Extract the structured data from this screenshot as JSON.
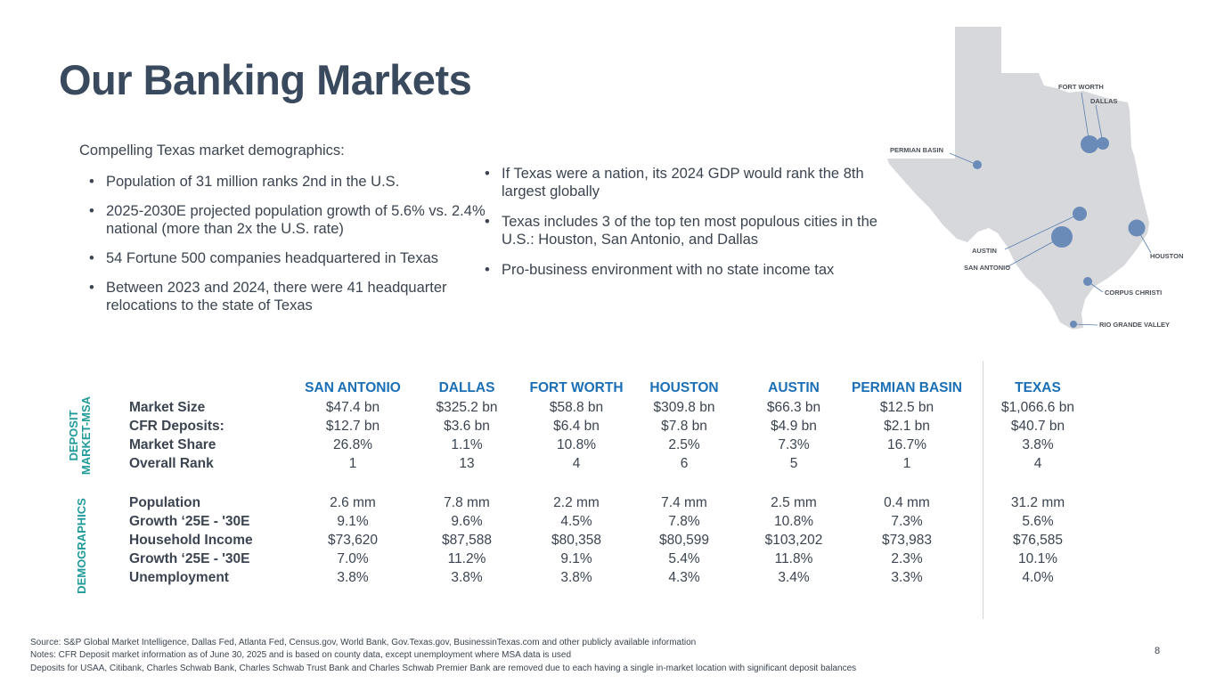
{
  "title": "Our Banking Markets",
  "intro": "Compelling Texas market demographics:",
  "left_bullets": [
    "Population of 31 million ranks 2nd in the U.S.",
    "2025-2030E projected population growth of 5.6% vs. 2.4% national (more than 2x the U.S. rate)",
    "54 Fortune 500 companies headquartered in Texas",
    "Between 2023 and 2024, there were 41 headquarter relocations to the state of Texas"
  ],
  "right_bullets": [
    "If Texas were a nation, its 2024 GDP would rank the 8th largest globally",
    "Texas includes 3 of the top ten most populous cities in the U.S.: Houston, San Antonio, and Dallas",
    "Pro-business environment with no state income tax"
  ],
  "map": {
    "labels": {
      "fort_worth": "FORT WORTH",
      "dallas": "DALLAS",
      "permian_basin": "PERMIAN BASIN",
      "austin": "AUSTIN",
      "san_antonio": "SAN ANTONIO",
      "houston": "HOUSTON",
      "corpus_christi": "CORPUS CHRISTI",
      "rio_grande_valley": "RIO GRANDE VALLEY"
    },
    "state_color": "#d6d8db",
    "marker_color": "#6a8bb7"
  },
  "section_labels": {
    "deposit_line1": "DEPOSIT",
    "deposit_line2": "MARKET-MSA",
    "demographics": "DEMOGRAPHICS"
  },
  "table": {
    "columns": [
      "SAN ANTONIO",
      "DALLAS",
      "FORT WORTH",
      "HOUSTON",
      "AUSTIN",
      "PERMIAN BASIN",
      "TEXAS"
    ],
    "deposit_rows": [
      {
        "label": "Market Size",
        "values": [
          "$47.4 bn",
          "$325.2 bn",
          "$58.8 bn",
          "$309.8 bn",
          "$66.3 bn",
          "$12.5 bn",
          "$1,066.6 bn"
        ]
      },
      {
        "label": "CFR Deposits:",
        "values": [
          "$12.7 bn",
          "$3.6 bn",
          "$6.4 bn",
          "$7.8 bn",
          "$4.9 bn",
          "$2.1 bn",
          "$40.7 bn"
        ]
      },
      {
        "label": "Market Share",
        "values": [
          "26.8%",
          "1.1%",
          "10.8%",
          "2.5%",
          "7.3%",
          "16.7%",
          "3.8%"
        ]
      },
      {
        "label": "Overall Rank",
        "values": [
          "1",
          "13",
          "4",
          "6",
          "5",
          "1",
          "4"
        ]
      }
    ],
    "demographic_rows": [
      {
        "label": "Population",
        "values": [
          "2.6 mm",
          "7.8 mm",
          "2.2 mm",
          "7.4 mm",
          "2.5 mm",
          "0.4 mm",
          "31.2 mm"
        ]
      },
      {
        "label": "Growth ‘25E - '30E",
        "values": [
          "9.1%",
          "9.6%",
          "4.5%",
          "7.8%",
          "10.8%",
          "7.3%",
          "5.6%"
        ]
      },
      {
        "label": "Household Income",
        "values": [
          "$73,620",
          "$87,588",
          "$80,358",
          "$80,599",
          "$103,202",
          "$73,983",
          "$76,585"
        ]
      },
      {
        "label": "Growth ‘25E - '30E",
        "values": [
          "7.0%",
          "11.2%",
          "9.1%",
          "5.4%",
          "11.8%",
          "2.3%",
          "10.1%"
        ]
      },
      {
        "label": "Unemployment",
        "values": [
          "3.8%",
          "3.8%",
          "3.8%",
          "4.3%",
          "3.4%",
          "3.3%",
          "4.0%"
        ]
      }
    ]
  },
  "footer": {
    "source": "Source: S&P Global Market Intelligence, Dallas Fed, Atlanta Fed, Census.gov, World Bank, Gov.Texas.gov, BusinessinTexas.com and other publicly available information",
    "notes": "Notes: CFR Deposit market information as of  June 30, 2025 and is based on county data, except unemployment where MSA data is used",
    "deposits_note": "Deposits for USAA, Citibank, Charles Schwab Bank, Charles Schwab Trust Bank and Charles Schwab Premier Bank are removed due to each having a single in-market location with significant deposit balances"
  },
  "page_number": "8"
}
